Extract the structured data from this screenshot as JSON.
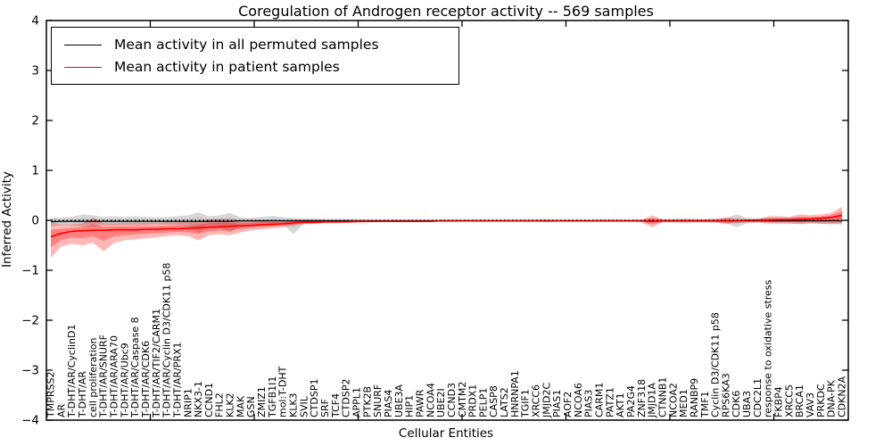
{
  "chart_data": {
    "type": "line",
    "title": "Coregulation of Androgen receptor activity -- 569 samples",
    "xlabel": "Cellular Entities",
    "ylabel": "Inferred Activity",
    "ylim": [
      -4,
      4
    ],
    "yticks": [
      4,
      3,
      2,
      1,
      0,
      -1,
      -2,
      -3,
      -4
    ],
    "ytick_labels": [
      "4",
      "3",
      "2",
      "1",
      "0",
      "−1",
      "−2",
      "−3",
      "−4"
    ],
    "grid": false,
    "zero_line": true,
    "legend_position": "upper left",
    "categories": [
      "TMPRSS2",
      "AR",
      "T-DHT/AR/CyclinD1",
      "T-DHT/AR",
      "cell proliferation",
      "T-DHT/AR/SNURF",
      "T-DHT/AR/ARA70",
      "T-DHT/AR/Ubc9",
      "T-DHT/AR/Caspase 8",
      "T-DHT/AR/CDK6",
      "T-DHT/AR/TIF2/CARM1",
      "T-DHT/AR/Cyclin D3/CDK11 p58",
      "T-DHT/AR/PRX1",
      "NRIP1",
      "NKX3-1",
      "CCND1",
      "FHL2",
      "KLK2",
      "MAK",
      "GSN",
      "ZMIZ1",
      "TGFB1I1",
      "mol:T-DHT",
      "KLK3",
      "SVIL",
      "CTDSP1",
      "SRF",
      "TCF4",
      "CTDSP2",
      "APPL1",
      "PTK2B",
      "SNURF",
      "PIAS4",
      "UBE3A",
      "HIP1",
      "PAWR",
      "NCOA4",
      "UBE2I",
      "CCND3",
      "CMTM2",
      "PRDX1",
      "PELP1",
      "CASP8",
      "LATS2",
      "HNRNPA1",
      "TGIF1",
      "XRCC6",
      "JMJD2C",
      "PIAS1",
      "AOF2",
      "NCOA6",
      "PIAS3",
      "CARM1",
      "PATZ1",
      "AKT1",
      "PA2G4",
      "ZNF318",
      "JMJD1A",
      "CTNNB1",
      "NCOA2",
      "MED1",
      "RANBP9",
      "TMF1",
      "Cyclin D3/CDK11 p58",
      "RPS6KA3",
      "CDK6",
      "UBA3",
      "CDC2L1",
      "response to oxidative stress",
      "FKBP4",
      "XRCC5",
      "BRCA1",
      "VAV3",
      "PRKDC",
      "DNA-PK",
      "CDKN2A"
    ],
    "series": [
      {
        "name": "Mean activity in all permuted samples",
        "color": "#000000",
        "band_color": "#999999",
        "values": [
          -0.03,
          -0.02,
          -0.02,
          -0.02,
          -0.02,
          -0.02,
          -0.02,
          -0.02,
          -0.02,
          -0.02,
          -0.02,
          -0.02,
          -0.02,
          -0.02,
          -0.02,
          -0.02,
          -0.02,
          -0.02,
          -0.01,
          -0.01,
          -0.01,
          -0.01,
          -0.01,
          -0.01,
          -0.01,
          -0.01,
          -0.01,
          -0.01,
          -0.01,
          -0.01,
          -0.01,
          -0.01,
          -0.01,
          -0.01,
          -0.01,
          -0.01,
          -0.01,
          -0.01,
          -0.01,
          -0.01,
          -0.01,
          -0.01,
          -0.01,
          -0.01,
          -0.01,
          -0.01,
          -0.01,
          -0.01,
          -0.01,
          -0.01,
          -0.01,
          -0.01,
          -0.01,
          -0.01,
          -0.01,
          -0.01,
          -0.01,
          -0.01,
          -0.01,
          -0.01,
          -0.01,
          -0.01,
          -0.01,
          -0.01,
          -0.01,
          -0.01,
          -0.01,
          -0.01,
          -0.01,
          -0.01,
          -0.01,
          -0.01,
          -0.01,
          -0.01,
          -0.01,
          -0.01
        ],
        "band_upper": [
          0.05,
          0.06,
          0.07,
          0.12,
          0.1,
          0.07,
          0.08,
          0.07,
          0.08,
          0.07,
          0.06,
          0.07,
          0.08,
          0.1,
          0.16,
          0.08,
          0.1,
          0.15,
          0.06,
          0.05,
          0.07,
          0.09,
          0.06,
          0.05,
          0.04,
          0.04,
          0.03,
          0.03,
          0.03,
          0.03,
          0.02,
          0.02,
          0.02,
          0.02,
          0.02,
          0.02,
          0.02,
          0.02,
          0.02,
          0.02,
          0.02,
          0.02,
          0.02,
          0.02,
          0.02,
          0.02,
          0.02,
          0.03,
          0.02,
          0.02,
          0.02,
          0.02,
          0.02,
          0.02,
          0.02,
          0.02,
          0.02,
          0.04,
          0.03,
          0.03,
          0.04,
          0.03,
          0.03,
          0.04,
          0.05,
          0.12,
          0.05,
          0.04,
          0.05,
          0.05,
          0.06,
          0.06,
          0.05,
          0.06,
          0.06,
          0.08
        ],
        "band_lower": [
          -0.12,
          -0.1,
          -0.1,
          -0.14,
          -0.12,
          -0.1,
          -0.1,
          -0.09,
          -0.1,
          -0.09,
          -0.08,
          -0.09,
          -0.1,
          -0.12,
          -0.26,
          -0.12,
          -0.14,
          -0.24,
          -0.08,
          -0.07,
          -0.09,
          -0.11,
          -0.08,
          -0.28,
          -0.06,
          -0.06,
          -0.05,
          -0.05,
          -0.04,
          -0.04,
          -0.03,
          -0.03,
          -0.03,
          -0.03,
          -0.03,
          -0.03,
          -0.03,
          -0.03,
          -0.03,
          -0.03,
          -0.03,
          -0.03,
          -0.03,
          -0.03,
          -0.03,
          -0.03,
          -0.03,
          -0.04,
          -0.03,
          -0.03,
          -0.03,
          -0.03,
          -0.03,
          -0.03,
          -0.03,
          -0.03,
          -0.03,
          -0.05,
          -0.04,
          -0.04,
          -0.05,
          -0.04,
          -0.04,
          -0.05,
          -0.06,
          -0.14,
          -0.06,
          -0.05,
          -0.06,
          -0.06,
          -0.07,
          -0.07,
          -0.06,
          -0.07,
          -0.07,
          -0.09
        ]
      },
      {
        "name": "Mean activity in patient samples",
        "color": "#ff0000",
        "band_color": "#ff0000",
        "values": [
          -0.33,
          -0.26,
          -0.22,
          -0.21,
          -0.2,
          -0.2,
          -0.19,
          -0.19,
          -0.19,
          -0.18,
          -0.18,
          -0.17,
          -0.17,
          -0.16,
          -0.15,
          -0.14,
          -0.13,
          -0.12,
          -0.11,
          -0.1,
          -0.09,
          -0.08,
          -0.07,
          -0.05,
          -0.04,
          -0.04,
          -0.03,
          -0.03,
          -0.03,
          -0.02,
          -0.02,
          -0.02,
          -0.02,
          -0.02,
          -0.02,
          -0.02,
          -0.02,
          -0.01,
          -0.01,
          -0.01,
          -0.01,
          -0.01,
          -0.01,
          -0.01,
          -0.01,
          -0.01,
          -0.01,
          -0.01,
          -0.01,
          -0.01,
          -0.01,
          -0.01,
          -0.01,
          -0.01,
          -0.01,
          -0.01,
          -0.01,
          -0.02,
          -0.01,
          -0.01,
          -0.01,
          -0.01,
          -0.01,
          -0.01,
          -0.01,
          -0.01,
          0.0,
          0.0,
          0.0,
          0.01,
          0.01,
          0.02,
          0.03,
          0.04,
          0.06,
          0.1
        ],
        "band_upper": [
          -0.05,
          -0.08,
          -0.08,
          -0.07,
          0.05,
          -0.06,
          -0.06,
          -0.05,
          -0.05,
          -0.05,
          -0.05,
          -0.04,
          -0.04,
          -0.03,
          -0.02,
          0.02,
          0.03,
          0.02,
          0.0,
          0.0,
          0.01,
          0.01,
          0.0,
          0.01,
          0.01,
          0.01,
          0.01,
          0.01,
          0.01,
          0.01,
          0.01,
          0.01,
          0.01,
          0.01,
          0.01,
          0.01,
          0.01,
          0.01,
          0.01,
          0.01,
          0.01,
          0.01,
          0.01,
          0.01,
          0.01,
          0.01,
          0.01,
          0.01,
          0.01,
          0.01,
          0.01,
          0.01,
          0.01,
          0.01,
          0.01,
          0.01,
          0.01,
          0.1,
          0.02,
          0.02,
          0.02,
          0.02,
          0.02,
          0.02,
          0.06,
          0.03,
          0.02,
          0.03,
          0.08,
          0.08,
          0.07,
          0.12,
          0.1,
          0.12,
          0.15,
          0.27
        ],
        "band_lower": [
          -0.75,
          -0.52,
          -0.47,
          -0.5,
          -0.45,
          -0.62,
          -0.45,
          -0.4,
          -0.38,
          -0.36,
          -0.34,
          -0.32,
          -0.3,
          -0.32,
          -0.4,
          -0.3,
          -0.28,
          -0.3,
          -0.24,
          -0.2,
          -0.18,
          -0.16,
          -0.14,
          -0.1,
          -0.08,
          -0.07,
          -0.06,
          -0.06,
          -0.05,
          -0.05,
          -0.04,
          -0.03,
          -0.03,
          -0.03,
          -0.03,
          -0.03,
          -0.03,
          -0.03,
          -0.03,
          -0.03,
          -0.03,
          -0.03,
          -0.03,
          -0.03,
          -0.03,
          -0.03,
          -0.03,
          -0.03,
          -0.03,
          -0.03,
          -0.03,
          -0.03,
          -0.03,
          -0.03,
          -0.03,
          -0.03,
          -0.04,
          -0.14,
          -0.04,
          -0.04,
          -0.04,
          -0.04,
          -0.04,
          -0.04,
          -0.08,
          -0.05,
          -0.04,
          -0.04,
          -0.06,
          -0.06,
          -0.06,
          -0.08,
          -0.06,
          -0.07,
          -0.08,
          -0.06
        ]
      }
    ]
  }
}
